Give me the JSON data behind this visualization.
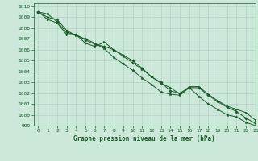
{
  "title": "Graphe pression niveau de la mer (hPa)",
  "bg_color": "#cce8d8",
  "grid_color": "#aad0c0",
  "line_color": "#1a5c2a",
  "xlim": [
    -0.5,
    23
  ],
  "ylim": [
    999,
    1010.3
  ],
  "yticks": [
    999,
    1000,
    1001,
    1002,
    1003,
    1004,
    1005,
    1006,
    1007,
    1008,
    1009,
    1010
  ],
  "xticks": [
    0,
    1,
    2,
    3,
    4,
    5,
    6,
    7,
    8,
    9,
    10,
    11,
    12,
    13,
    14,
    15,
    16,
    17,
    18,
    19,
    20,
    21,
    22,
    23
  ],
  "series1_x": [
    0,
    1,
    2,
    3,
    4,
    5,
    6,
    7,
    8,
    9,
    10,
    11,
    12,
    13,
    14,
    15,
    16,
    17,
    18,
    19,
    20,
    21,
    22,
    23
  ],
  "series1_y": [
    1009.5,
    1009.3,
    1008.6,
    1007.6,
    1007.4,
    1006.9,
    1006.5,
    1006.3,
    1006.0,
    1005.5,
    1005.0,
    1004.3,
    1003.5,
    1003.0,
    1002.2,
    1002.0,
    1002.5,
    1002.5,
    1001.8,
    1001.2,
    1000.7,
    1000.3,
    999.7,
    999.2
  ],
  "series2_x": [
    0,
    1,
    2,
    3,
    4,
    5,
    6,
    7,
    8,
    9,
    10,
    11,
    12,
    13,
    14,
    15,
    16,
    17,
    18,
    19,
    20,
    21,
    22,
    23
  ],
  "series2_y": [
    1009.5,
    1008.8,
    1008.5,
    1007.4,
    1007.4,
    1006.6,
    1006.3,
    1006.7,
    1006.0,
    1005.4,
    1004.8,
    1004.2,
    1003.5,
    1002.9,
    1002.5,
    1001.9,
    1002.6,
    1002.6,
    1001.9,
    1001.3,
    1000.8,
    1000.5,
    1000.2,
    999.5
  ],
  "series3_x": [
    0,
    1,
    2,
    3,
    4,
    5,
    6,
    7,
    8,
    9,
    10,
    11,
    12,
    13,
    14,
    15,
    16,
    17,
    18,
    19,
    20,
    21,
    22,
    23
  ],
  "series3_y": [
    1009.5,
    1009.0,
    1008.8,
    1007.8,
    1007.3,
    1007.0,
    1006.6,
    1006.1,
    1005.3,
    1004.7,
    1004.1,
    1003.4,
    1002.8,
    1002.1,
    1001.9,
    1001.8,
    1002.5,
    1001.7,
    1001.0,
    1000.5,
    1000.0,
    999.8,
    999.3,
    999.0
  ]
}
